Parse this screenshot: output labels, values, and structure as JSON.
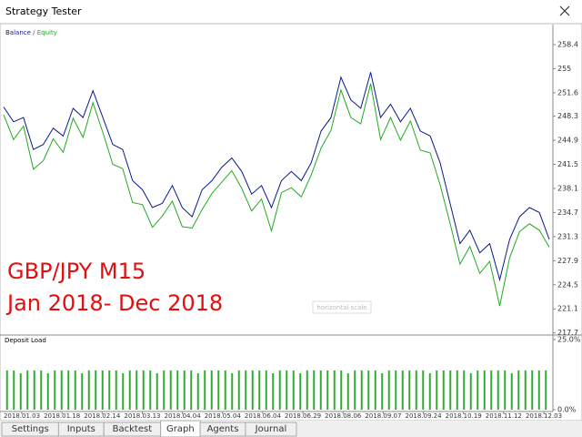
{
  "window": {
    "title": "Strategy Tester"
  },
  "tabs": [
    "Settings",
    "Inputs",
    "Backtest",
    "Graph",
    "Agents",
    "Journal"
  ],
  "time_axis": {
    "labels": [
      "2018.01.03",
      "2018.01.18",
      "2018.02.14",
      "2018.03.13",
      "2018.04.04",
      "2018.05.04",
      "2018.06.04",
      "2018.06.29",
      "2018.08.06",
      "2018.09.07",
      "2018.09.24",
      "2018.10.19",
      "2018.11.12",
      "2018.12.03"
    ]
  },
  "annotations": [
    "GBP/JPY M15",
    "Jan 2018- Dec 2018",
    "horizontal scale"
  ],
  "chart_data": [
    {
      "type": "line",
      "legend_separator": " / ",
      "series": [
        {
          "name": "Balance",
          "color": "#0a1a8c",
          "values": [
            249.6,
            247.5,
            248.1,
            243.6,
            244.3,
            246.6,
            245.5,
            249.4,
            248.1,
            251.9,
            248.1,
            244.3,
            243.6,
            239.2,
            237.9,
            235.4,
            236.0,
            238.5,
            235.4,
            234.1,
            237.9,
            239.2,
            241.1,
            242.4,
            240.5,
            237.3,
            238.5,
            235.4,
            239.2,
            240.5,
            239.2,
            241.7,
            246.2,
            248.1,
            253.8,
            250.6,
            249.4,
            254.5,
            248.1,
            250.0,
            247.5,
            249.4,
            246.2,
            245.5,
            241.7,
            236.0,
            230.3,
            232.2,
            229.0,
            230.3,
            225.2,
            230.9,
            234.1,
            235.4,
            234.7,
            230.9
          ]
        },
        {
          "name": "Equity",
          "color": "#22aa22",
          "values": [
            248.5,
            245.0,
            246.9,
            240.8,
            242.0,
            245.1,
            243.2,
            248.0,
            245.3,
            250.2,
            246.0,
            241.5,
            240.9,
            236.1,
            235.8,
            232.6,
            234.2,
            236.3,
            232.7,
            232.5,
            235.1,
            237.4,
            239.0,
            240.6,
            238.1,
            234.9,
            236.6,
            232.1,
            237.5,
            238.2,
            236.9,
            240.0,
            243.8,
            246.3,
            252.0,
            248.1,
            247.2,
            252.9,
            245.0,
            248.1,
            244.9,
            247.6,
            243.5,
            243.1,
            238.6,
            233.2,
            227.4,
            229.9,
            226.1,
            227.8,
            221.5,
            228.3,
            232.0,
            233.1,
            232.2,
            229.8
          ]
        }
      ],
      "ylim": [
        217.4,
        261.1
      ],
      "yticks": [
        258.4,
        255.0,
        251.6,
        248.3,
        244.9,
        241.5,
        238.1,
        234.7,
        231.3,
        227.9,
        224.5,
        221.1,
        217.7
      ]
    },
    {
      "type": "bar",
      "title": "Deposit Load",
      "color": "#33aa33",
      "values": [
        14,
        14,
        13,
        14,
        14,
        14,
        13,
        14,
        14,
        14,
        14,
        13,
        14,
        14,
        14,
        14,
        14,
        13,
        14,
        14,
        14,
        14,
        13,
        14,
        14,
        14,
        14,
        14,
        13,
        14,
        14,
        14,
        14,
        13,
        14,
        14,
        14,
        14,
        14,
        13,
        14,
        14,
        14,
        13,
        14,
        14,
        14,
        14,
        14,
        14,
        13,
        14,
        14,
        14,
        14,
        13,
        14,
        14,
        14,
        14,
        14,
        14,
        13,
        14,
        14,
        14,
        14,
        14,
        13,
        14,
        14,
        14,
        14,
        14,
        13,
        14,
        14,
        14,
        14,
        14
      ],
      "ylim": [
        0,
        25
      ],
      "yticks": [
        {
          "value": 25,
          "label": "25.0%"
        },
        {
          "value": 0,
          "label": "0.0%"
        }
      ]
    }
  ]
}
